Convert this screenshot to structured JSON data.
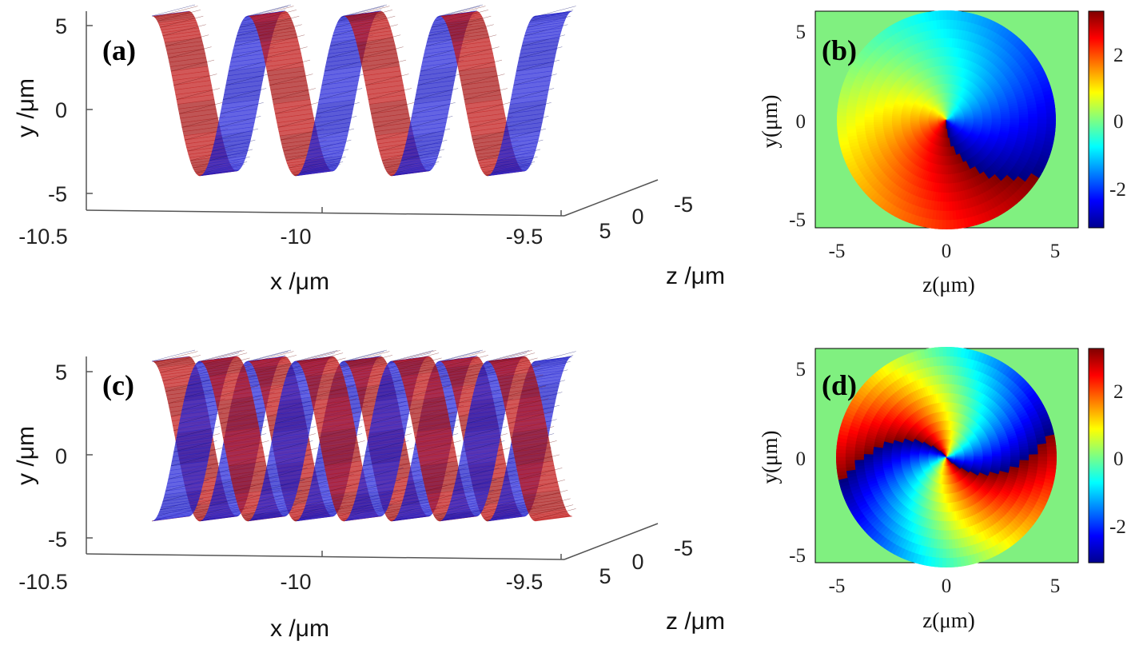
{
  "chart_data": [
    {
      "panel": "(a)",
      "type": "surface3d",
      "xlabel": "x /μm",
      "ylabel": "y /μm",
      "zlabel": "z /μm",
      "x_ticks": [
        "-10.5",
        "-10",
        "-9.5"
      ],
      "y_ticks": [
        "5",
        "0",
        "-5"
      ],
      "z_ticks": [
        "5",
        "0",
        "-5"
      ],
      "xlim": [
        -10.5,
        -9.5
      ],
      "ylim": [
        -6,
        6
      ],
      "zlim": [
        -6,
        6
      ],
      "colors": [
        "#c01818",
        "#1c1cc8"
      ],
      "helix_turns": 4,
      "helix_strands": 1
    },
    {
      "panel": "(b)",
      "type": "heatmap",
      "xlabel": "z(μm)",
      "ylabel": "y(μm)",
      "x_ticks": [
        "-5",
        "0",
        "5"
      ],
      "y_ticks": [
        "5",
        "0",
        "-5"
      ],
      "colorbar_ticks": [
        "2",
        "0",
        "-2"
      ],
      "xlim": [
        -6,
        6
      ],
      "ylim": [
        -6,
        6
      ],
      "clim": [
        -3.14,
        3.14
      ],
      "colormap": "jet",
      "background": "#80f080",
      "disk_radius": 5,
      "topological_charge": 1
    },
    {
      "panel": "(c)",
      "type": "surface3d",
      "xlabel": "x /μm",
      "ylabel": "y /μm",
      "zlabel": "z /μm",
      "x_ticks": [
        "-10.5",
        "-10",
        "-9.5"
      ],
      "y_ticks": [
        "5",
        "0",
        "-5"
      ],
      "z_ticks": [
        "5",
        "0",
        "-5"
      ],
      "xlim": [
        -10.5,
        -9.5
      ],
      "ylim": [
        -6,
        6
      ],
      "zlim": [
        -6,
        6
      ],
      "colors": [
        "#c01818",
        "#1c1cc8"
      ],
      "helix_turns": 4,
      "helix_strands": 2
    },
    {
      "panel": "(d)",
      "type": "heatmap",
      "xlabel": "z(μm)",
      "ylabel": "y(μm)",
      "x_ticks": [
        "-5",
        "0",
        "5"
      ],
      "y_ticks": [
        "5",
        "0",
        "-5"
      ],
      "colorbar_ticks": [
        "2",
        "0",
        "-2"
      ],
      "xlim": [
        -6,
        6
      ],
      "ylim": [
        -6,
        6
      ],
      "clim": [
        -3.14,
        3.14
      ],
      "colormap": "jet",
      "background": "#80f080",
      "disk_radius": 5,
      "topological_charge": 2
    }
  ]
}
